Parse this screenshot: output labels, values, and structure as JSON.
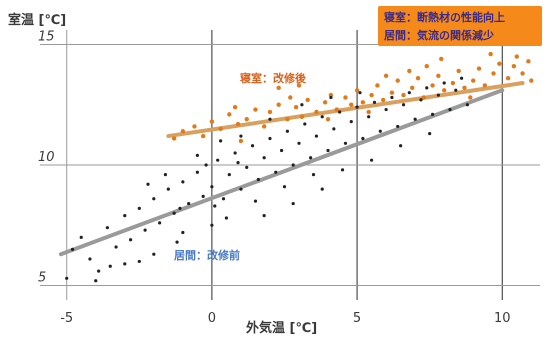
{
  "chart_data": {
    "type": "scatter",
    "title": "",
    "ylabel": "室温 [℃]",
    "xlabel": "外気温 [℃]",
    "xlim": [
      -5.3,
      11.3
    ],
    "ylim": [
      4.4,
      15.6
    ],
    "xticks": [
      -5,
      0,
      5,
      10
    ],
    "yticks": [
      5,
      10,
      15
    ],
    "xtick_labels": [
      "-5",
      "0",
      "5",
      "10"
    ],
    "ytick_labels": [
      "5",
      "10",
      "15"
    ],
    "grid": true,
    "legend_placement": "top-right",
    "legend_box": {
      "items": [
        "寝室：断熱材の性能向上",
        "居間：気流の関係減少"
      ],
      "fill": "#f58a1a"
    },
    "series": [
      {
        "name": "寝室：改修後",
        "color": "#e07a1a",
        "line_color": "#d9a060",
        "trend": {
          "x": [
            -1.5,
            10.7
          ],
          "y": [
            11.2,
            13.4
          ]
        },
        "points": [
          [
            -1.3,
            11.1
          ],
          [
            -1.0,
            11.4
          ],
          [
            -0.6,
            11.6
          ],
          [
            -0.3,
            11.2
          ],
          [
            0.0,
            11.8
          ],
          [
            0.3,
            11.5
          ],
          [
            0.6,
            12.1
          ],
          [
            0.9,
            11.7
          ],
          [
            1.2,
            11.9
          ],
          [
            1.5,
            12.3
          ],
          [
            1.8,
            11.6
          ],
          [
            2.0,
            12.2
          ],
          [
            2.3,
            12.5
          ],
          [
            2.6,
            11.9
          ],
          [
            2.9,
            12.4
          ],
          [
            3.1,
            12.0
          ],
          [
            3.3,
            12.7
          ],
          [
            3.6,
            12.2
          ],
          [
            3.9,
            12.6
          ],
          [
            4.1,
            12.9
          ],
          [
            4.3,
            12.3
          ],
          [
            4.6,
            12.8
          ],
          [
            4.8,
            12.5
          ],
          [
            5.0,
            13.1
          ],
          [
            5.2,
            12.6
          ],
          [
            5.5,
            12.9
          ],
          [
            5.7,
            13.3
          ],
          [
            5.9,
            12.7
          ],
          [
            6.2,
            13.0
          ],
          [
            6.4,
            13.5
          ],
          [
            6.6,
            12.9
          ],
          [
            6.9,
            13.2
          ],
          [
            7.1,
            13.6
          ],
          [
            7.3,
            12.8
          ],
          [
            7.6,
            13.3
          ],
          [
            7.8,
            13.7
          ],
          [
            8.0,
            13.1
          ],
          [
            8.3,
            13.4
          ],
          [
            8.5,
            13.9
          ],
          [
            8.7,
            13.2
          ],
          [
            9.0,
            13.5
          ],
          [
            9.2,
            14.0
          ],
          [
            9.4,
            13.3
          ],
          [
            9.7,
            13.8
          ],
          [
            9.9,
            14.2
          ],
          [
            10.2,
            13.6
          ],
          [
            10.4,
            14.1
          ],
          [
            10.7,
            13.8
          ],
          [
            10.9,
            14.3
          ],
          [
            11.0,
            13.5
          ],
          [
            7.9,
            14.4
          ],
          [
            6.8,
            13.9
          ],
          [
            3.0,
            13.3
          ],
          [
            2.3,
            13.2
          ],
          [
            8.9,
            12.8
          ],
          [
            5.4,
            12.2
          ],
          [
            4.0,
            11.9
          ],
          [
            1.0,
            11.0
          ],
          [
            9.6,
            14.6
          ],
          [
            7.4,
            14.1
          ],
          [
            6.0,
            13.7
          ],
          [
            2.7,
            12.8
          ],
          [
            0.8,
            12.4
          ],
          [
            10.5,
            14.5
          ]
        ]
      },
      {
        "name": "居間：改修前",
        "color": "#222222",
        "line_color": "#9a9a9a",
        "trend": {
          "x": [
            -5.2,
            10.0
          ],
          "y": [
            6.3,
            13.1
          ]
        },
        "points": [
          [
            -5.0,
            5.3
          ],
          [
            -4.8,
            6.5
          ],
          [
            -4.5,
            7.0
          ],
          [
            -4.2,
            6.1
          ],
          [
            -3.9,
            5.6
          ],
          [
            -3.6,
            7.4
          ],
          [
            -3.3,
            6.6
          ],
          [
            -3.0,
            7.9
          ],
          [
            -2.8,
            6.9
          ],
          [
            -2.5,
            8.2
          ],
          [
            -2.3,
            7.3
          ],
          [
            -2.0,
            8.6
          ],
          [
            -1.8,
            7.6
          ],
          [
            -1.5,
            9.0
          ],
          [
            -1.3,
            8.0
          ],
          [
            -1.0,
            9.3
          ],
          [
            -0.8,
            8.4
          ],
          [
            -0.5,
            9.7
          ],
          [
            -0.3,
            8.7
          ],
          [
            0.0,
            9.1
          ],
          [
            0.2,
            10.2
          ],
          [
            0.4,
            8.6
          ],
          [
            0.6,
            9.6
          ],
          [
            0.8,
            10.5
          ],
          [
            1.0,
            9.0
          ],
          [
            1.2,
            9.9
          ],
          [
            1.4,
            10.8
          ],
          [
            1.6,
            9.4
          ],
          [
            1.8,
            10.3
          ],
          [
            2.0,
            11.1
          ],
          [
            2.2,
            9.7
          ],
          [
            2.4,
            10.6
          ],
          [
            2.6,
            11.4
          ],
          [
            2.8,
            10.0
          ],
          [
            3.0,
            10.9
          ],
          [
            3.2,
            11.7
          ],
          [
            3.4,
            10.3
          ],
          [
            3.6,
            11.2
          ],
          [
            3.8,
            12.0
          ],
          [
            4.0,
            10.6
          ],
          [
            4.2,
            11.5
          ],
          [
            4.4,
            12.2
          ],
          [
            4.6,
            10.9
          ],
          [
            4.8,
            11.8
          ],
          [
            5.0,
            12.4
          ],
          [
            5.2,
            11.1
          ],
          [
            5.4,
            12.0
          ],
          [
            5.6,
            12.6
          ],
          [
            5.8,
            11.4
          ],
          [
            6.0,
            12.3
          ],
          [
            6.2,
            12.8
          ],
          [
            6.4,
            11.6
          ],
          [
            6.6,
            12.5
          ],
          [
            6.8,
            13.0
          ],
          [
            7.0,
            11.9
          ],
          [
            7.2,
            12.7
          ],
          [
            7.4,
            13.2
          ],
          [
            7.6,
            12.1
          ],
          [
            7.8,
            12.9
          ],
          [
            8.0,
            13.4
          ],
          [
            8.2,
            12.3
          ],
          [
            8.4,
            13.1
          ],
          [
            8.6,
            13.6
          ],
          [
            8.8,
            12.5
          ],
          [
            -3.5,
            5.8
          ],
          [
            -2.0,
            6.3
          ],
          [
            -1.0,
            7.2
          ],
          [
            0.5,
            7.8
          ],
          [
            1.5,
            8.5
          ],
          [
            2.5,
            9.1
          ],
          [
            3.5,
            9.6
          ],
          [
            -0.5,
            10.4
          ],
          [
            1.0,
            11.2
          ],
          [
            2.0,
            11.9
          ],
          [
            -1.6,
            9.6
          ],
          [
            0.3,
            11.0
          ],
          [
            4.5,
            9.8
          ],
          [
            5.5,
            10.2
          ],
          [
            6.5,
            10.8
          ],
          [
            7.5,
            11.3
          ],
          [
            -4.0,
            5.2
          ],
          [
            -3.0,
            5.9
          ],
          [
            -2.5,
            6.0
          ],
          [
            -1.2,
            6.8
          ],
          [
            0.0,
            7.5
          ],
          [
            1.8,
            7.9
          ],
          [
            2.8,
            8.4
          ],
          [
            3.8,
            9.0
          ],
          [
            -2.2,
            9.2
          ],
          [
            -0.2,
            10.0
          ],
          [
            0.9,
            10.1
          ],
          [
            3.1,
            12.5
          ],
          [
            4.1,
            12.8
          ],
          [
            5.1,
            13.0
          ],
          [
            -1.1,
            8.2
          ],
          [
            0.1,
            8.3
          ]
        ]
      }
    ]
  }
}
